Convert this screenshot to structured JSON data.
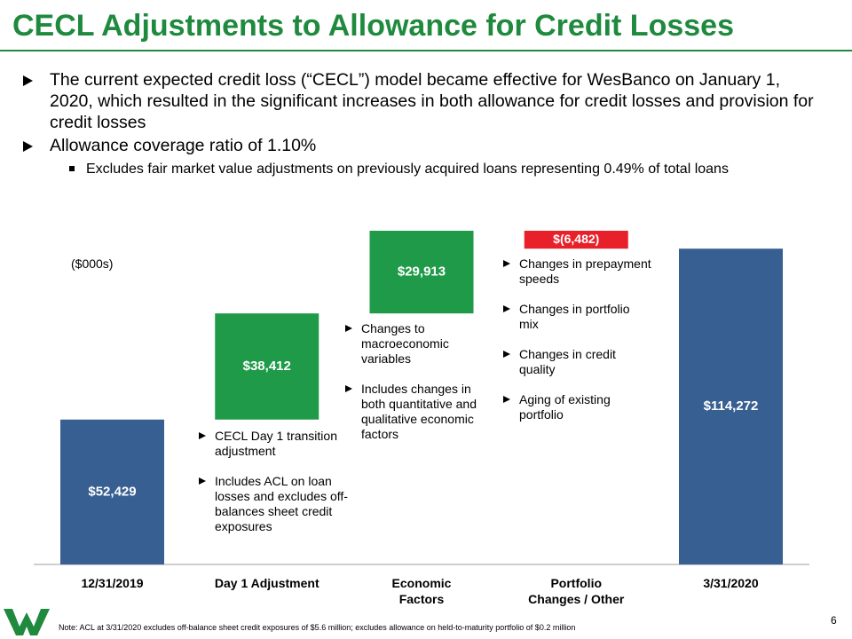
{
  "title": "CECL Adjustments to Allowance for Credit Losses",
  "bullets": [
    "The current expected credit loss (“CECL”) model became effective for WesBanco on January 1, 2020, which resulted in the significant increases in both allowance for credit losses and provision for credit losses",
    "Allowance coverage ratio of 1.10%"
  ],
  "sub_bullets": [
    "Excludes fair market value adjustments on previously acquired loans representing 0.49% of total loans"
  ],
  "chart_data": {
    "type": "waterfall",
    "unit_label": "($000s)",
    "categories": [
      "12/31/2019",
      "Day 1 Adjustment",
      "Economic Factors",
      "Portfolio Changes / Other",
      "3/31/2020"
    ],
    "values": [
      52429,
      38412,
      29913,
      -6482,
      114272
    ],
    "value_labels": [
      "$52,429",
      "$38,412",
      "$29,913",
      "$(6,482)",
      "$114,272"
    ],
    "kinds": [
      "total",
      "delta",
      "delta",
      "delta",
      "total"
    ],
    "colors": [
      "#375f91",
      "#1f9a48",
      "#1f9a48",
      "#e8202a",
      "#375f91"
    ],
    "annotations": [
      [
        "CECL Day 1 transition adjustment",
        "Includes ACL on loan losses and excludes off-balances sheet credit exposures"
      ],
      [
        "Changes to macroeconomic variables",
        "Includes changes in both quantitative and qualitative economic factors"
      ],
      [
        "Changes in prepayment speeds",
        "Changes in portfolio mix",
        "Changes in credit quality",
        "Aging of existing portfolio"
      ]
    ]
  },
  "note": "Note:  ACL at 3/31/2020 excludes off-balance sheet credit exposures of $5.6 million;  excludes allowance on held-to-maturity portfolio of $0.2 million",
  "page_number": "6"
}
